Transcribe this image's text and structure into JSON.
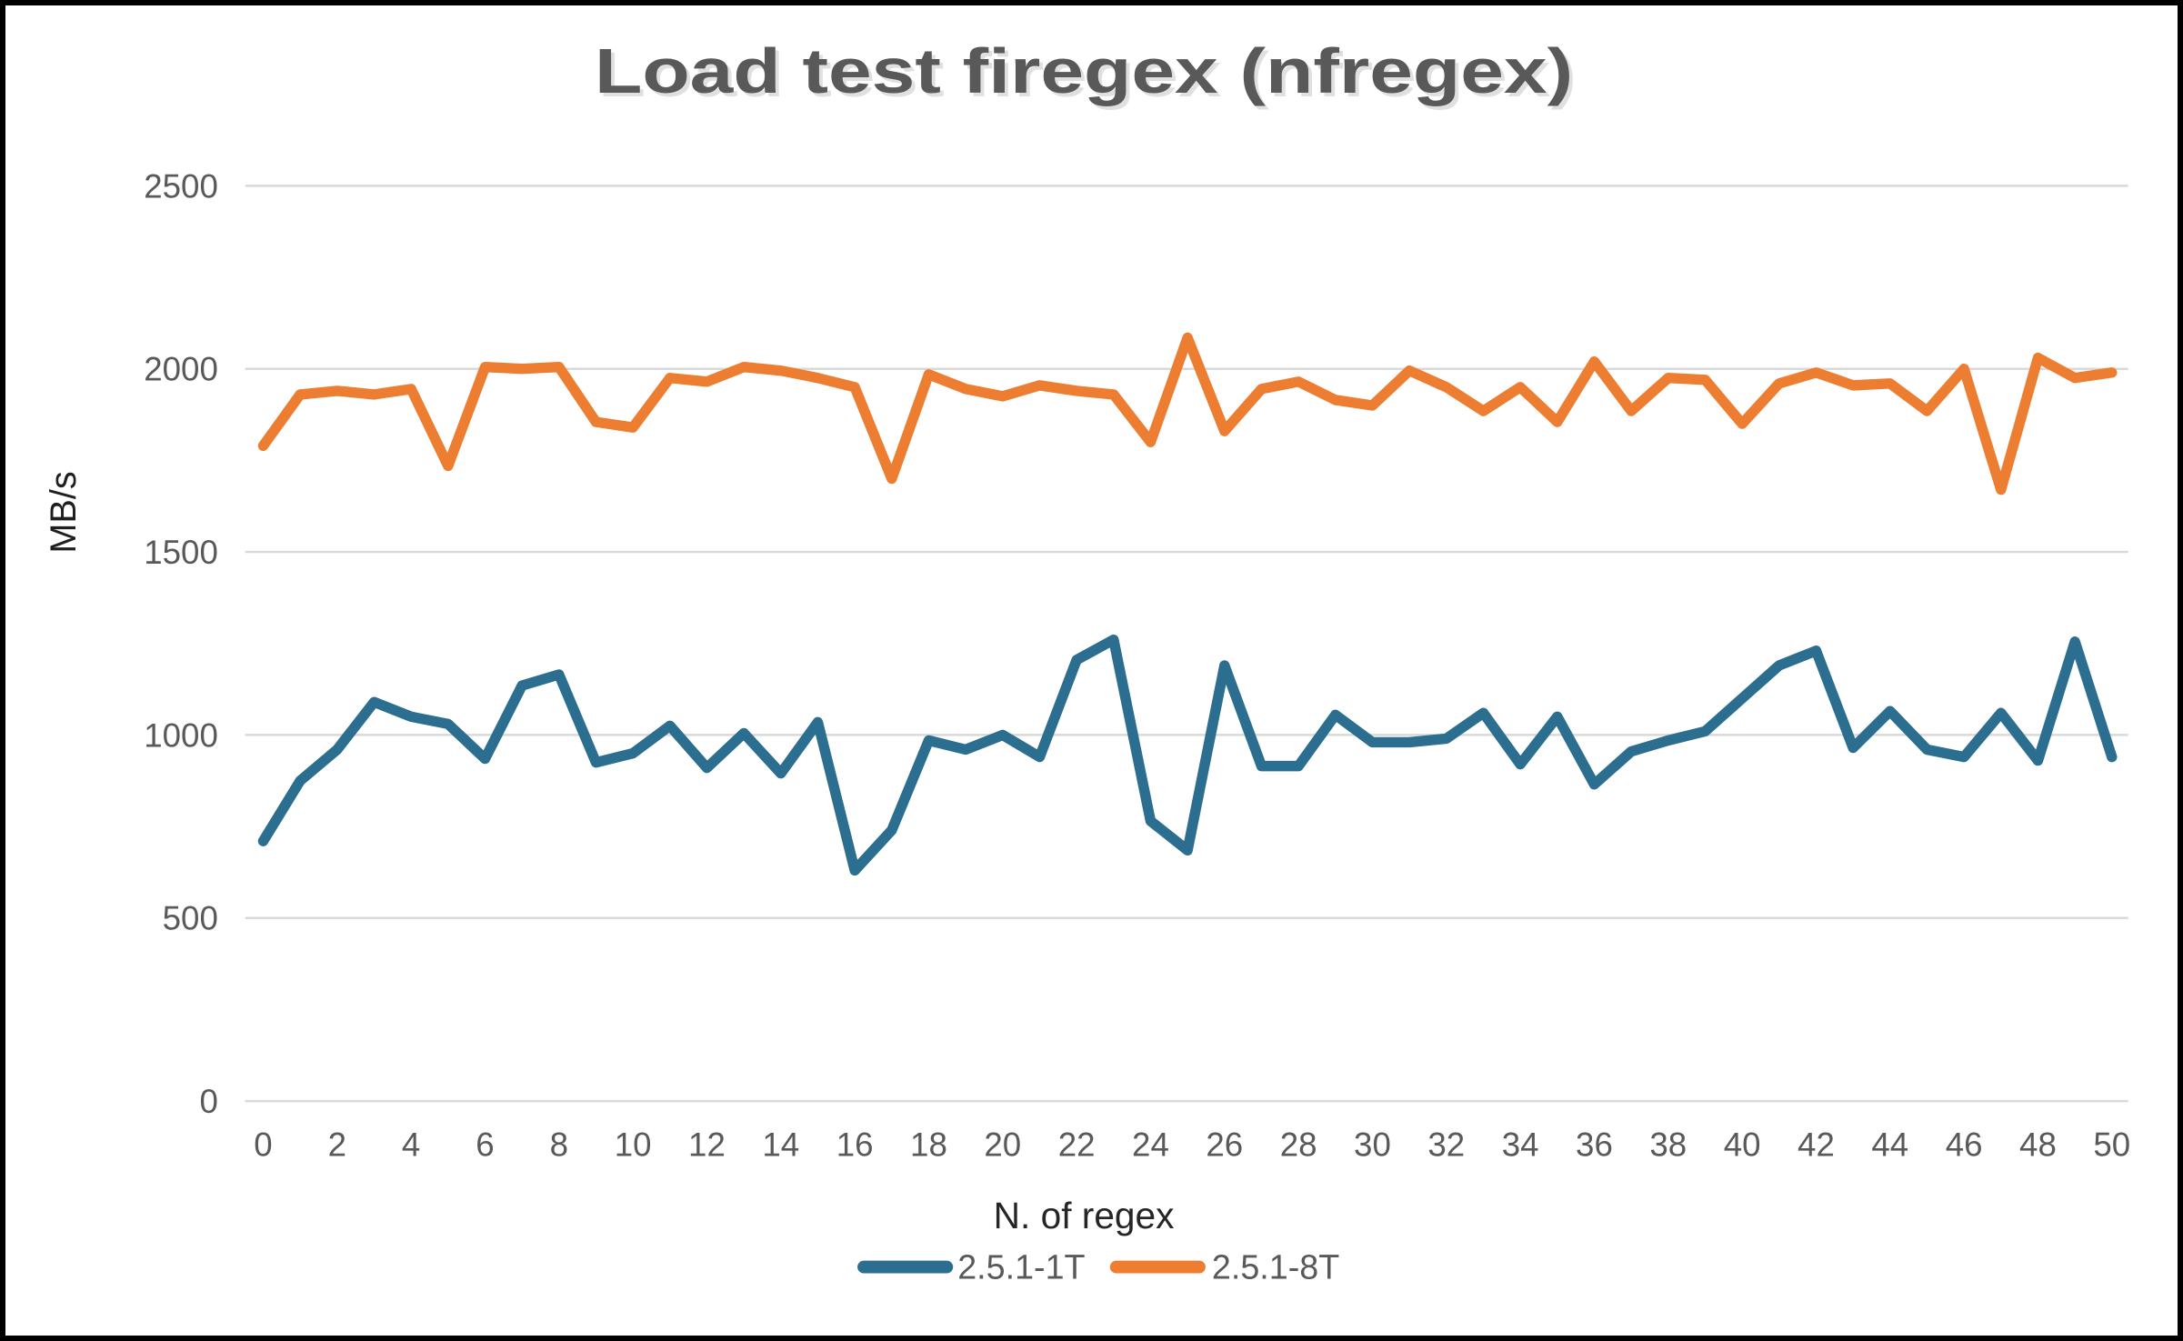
{
  "window": {
    "background": "#FFFFFF",
    "border_color": "#000000"
  },
  "chart_data": {
    "type": "line",
    "title": "Load test firegex (nfregex)",
    "xlabel": "N. of regex",
    "ylabel": "MB/s",
    "ylim": [
      0,
      2500
    ],
    "y_ticks": [
      0,
      500,
      1000,
      1500,
      2000,
      2500
    ],
    "x_tick_labels": [
      0,
      2,
      4,
      6,
      8,
      10,
      12,
      14,
      16,
      18,
      20,
      22,
      24,
      26,
      28,
      30,
      32,
      34,
      36,
      38,
      40,
      42,
      44,
      46,
      48,
      50
    ],
    "grid": "horizontal",
    "legend_position": "bottom-center",
    "series": [
      {
        "name": "2.5.1-1T",
        "color": "#2B6E8F",
        "values": [
          710,
          875,
          960,
          1090,
          1050,
          1030,
          935,
          1135,
          1165,
          925,
          950,
          1025,
          910,
          1005,
          895,
          1035,
          630,
          740,
          985,
          960,
          1000,
          940,
          1205,
          1260,
          765,
          685,
          1190,
          915,
          915,
          1055,
          980,
          980,
          990,
          1060,
          920,
          1050,
          865,
          955,
          985,
          1010,
          1100,
          1190,
          1230,
          965,
          1065,
          960,
          940,
          1060,
          930,
          1255,
          940
        ]
      },
      {
        "name": "2.5.1-8T",
        "color": "#ED7D31",
        "values": [
          1790,
          1930,
          1940,
          1930,
          1945,
          1735,
          2005,
          2000,
          2005,
          1855,
          1840,
          1975,
          1965,
          2005,
          1995,
          1975,
          1950,
          1700,
          1985,
          1945,
          1925,
          1955,
          1940,
          1930,
          1800,
          2085,
          1830,
          1945,
          1965,
          1915,
          1900,
          1995,
          1950,
          1885,
          1950,
          1855,
          2020,
          1885,
          1975,
          1970,
          1850,
          1960,
          1990,
          1955,
          1960,
          1885,
          2000,
          1670,
          2030,
          1975,
          1990
        ]
      }
    ],
    "style": {
      "grid_color": "#D9D9D9",
      "title_color": "#595959",
      "title_shadow_color": "#C8C8C8",
      "tick_label_color": "#595959",
      "axis_title_color": "#1F1F1F",
      "legend_label_color": "#595959",
      "line_width": 11.5
    }
  }
}
